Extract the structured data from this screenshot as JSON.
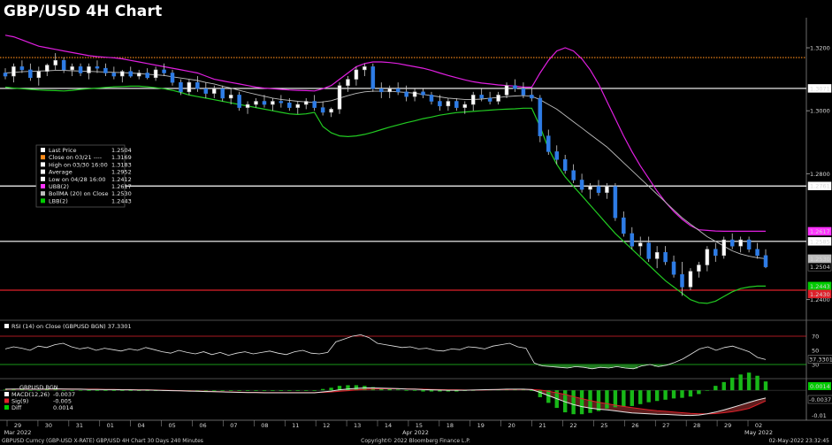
{
  "title": "GBP/USD 4H Chart",
  "chart_data": {
    "type": "candlestick",
    "price_axis": {
      "ticks": [
        "1.3200",
        "1.3000",
        "1.2800",
        "1.2400"
      ],
      "ylim": [
        1.234,
        1.329
      ]
    },
    "x_ticks": [
      "29",
      "30",
      "31",
      "01",
      "04",
      "05",
      "06",
      "07",
      "08",
      "11",
      "12",
      "13",
      "14",
      "15",
      "18",
      "19",
      "20",
      "21",
      "22",
      "25",
      "26",
      "27",
      "28",
      "29",
      "02"
    ],
    "month_labels": [
      "Mar 2022",
      "Apr 2022",
      "May 2022"
    ],
    "price_tags": [
      {
        "label": "1.3071",
        "value": 1.3071,
        "bg": "#ffffff",
        "fg": "#000000"
      },
      {
        "label": "1.2761",
        "value": 1.2761,
        "bg": "#ffffff",
        "fg": "#000000"
      },
      {
        "label": "1.2617",
        "value": 1.2617,
        "bg": "#ff33ff",
        "fg": "#000000"
      },
      {
        "label": "1.2585",
        "value": 1.2585,
        "bg": "#ffffff",
        "fg": "#000000"
      },
      {
        "label": "1.2530",
        "value": 1.253,
        "bg": "#bdbdbd",
        "fg": "#000000"
      },
      {
        "label": "1.2504",
        "value": 1.2504,
        "bg": "#000000",
        "fg": "#ffffff"
      },
      {
        "label": "1.2443",
        "value": 1.2443,
        "bg": "#00cc00",
        "fg": "#000000"
      },
      {
        "label": "1.2430",
        "value": 1.243,
        "bg": "#e0202a",
        "fg": "#ffffff"
      }
    ],
    "hlines": [
      {
        "value": 1.3169,
        "color": "#ff8c1a",
        "style": "dotted"
      },
      {
        "value": 1.3071,
        "color": "#ffffff",
        "style": "solid"
      },
      {
        "value": 1.2761,
        "color": "#ffffff",
        "style": "solid"
      },
      {
        "value": 1.2585,
        "color": "#ffffff",
        "style": "solid"
      },
      {
        "value": 1.243,
        "color": "#e0202a",
        "style": "solid"
      }
    ],
    "candles": [
      [
        1.312,
        1.3135,
        1.31,
        1.311
      ],
      [
        1.311,
        1.315,
        1.309,
        1.314
      ],
      [
        1.314,
        1.316,
        1.312,
        1.313
      ],
      [
        1.313,
        1.315,
        1.3095,
        1.3105
      ],
      [
        1.3105,
        1.314,
        1.308,
        1.3125
      ],
      [
        1.3125,
        1.315,
        1.311,
        1.3145
      ],
      [
        1.3145,
        1.3183,
        1.313,
        1.316
      ],
      [
        1.316,
        1.317,
        1.312,
        1.313
      ],
      [
        1.313,
        1.315,
        1.311,
        1.314
      ],
      [
        1.314,
        1.315,
        1.311,
        1.312
      ],
      [
        1.312,
        1.315,
        1.31,
        1.314
      ],
      [
        1.314,
        1.316,
        1.312,
        1.3135
      ],
      [
        1.3135,
        1.315,
        1.311,
        1.312
      ],
      [
        1.312,
        1.314,
        1.31,
        1.311
      ],
      [
        1.311,
        1.313,
        1.309,
        1.3125
      ],
      [
        1.3125,
        1.314,
        1.3105,
        1.311
      ],
      [
        1.311,
        1.313,
        1.31,
        1.312
      ],
      [
        1.312,
        1.3135,
        1.31,
        1.3105
      ],
      [
        1.3105,
        1.314,
        1.3095,
        1.313
      ],
      [
        1.313,
        1.315,
        1.311,
        1.312
      ],
      [
        1.312,
        1.313,
        1.308,
        1.309
      ],
      [
        1.309,
        1.31,
        1.305,
        1.306
      ],
      [
        1.306,
        1.31,
        1.305,
        1.309
      ],
      [
        1.309,
        1.311,
        1.306,
        1.307
      ],
      [
        1.307,
        1.309,
        1.304,
        1.3055
      ],
      [
        1.3055,
        1.308,
        1.304,
        1.307
      ],
      [
        1.307,
        1.308,
        1.303,
        1.304
      ],
      [
        1.304,
        1.307,
        1.302,
        1.305
      ],
      [
        1.305,
        1.306,
        1.3,
        1.301
      ],
      [
        1.301,
        1.303,
        1.299,
        1.302
      ],
      [
        1.302,
        1.304,
        1.301,
        1.303
      ],
      [
        1.303,
        1.305,
        1.301,
        1.302
      ],
      [
        1.302,
        1.304,
        1.3,
        1.303
      ],
      [
        1.303,
        1.305,
        1.301,
        1.3025
      ],
      [
        1.3025,
        1.304,
        1.3,
        1.301
      ],
      [
        1.301,
        1.303,
        1.299,
        1.302
      ],
      [
        1.302,
        1.304,
        1.3005,
        1.303
      ],
      [
        1.303,
        1.305,
        1.3,
        1.301
      ],
      [
        1.301,
        1.303,
        1.2985,
        1.2995
      ],
      [
        1.2995,
        1.301,
        1.298,
        1.3005
      ],
      [
        1.3005,
        1.309,
        1.299,
        1.308
      ],
      [
        1.308,
        1.311,
        1.306,
        1.31
      ],
      [
        1.31,
        1.314,
        1.308,
        1.313
      ],
      [
        1.313,
        1.315,
        1.311,
        1.314
      ],
      [
        1.314,
        1.315,
        1.306,
        1.307
      ],
      [
        1.307,
        1.309,
        1.304,
        1.306
      ],
      [
        1.306,
        1.308,
        1.304,
        1.307
      ],
      [
        1.307,
        1.309,
        1.305,
        1.306
      ],
      [
        1.306,
        1.308,
        1.303,
        1.3045
      ],
      [
        1.3045,
        1.307,
        1.303,
        1.306
      ],
      [
        1.306,
        1.307,
        1.304,
        1.305
      ],
      [
        1.305,
        1.306,
        1.302,
        1.303
      ],
      [
        1.303,
        1.305,
        1.3,
        1.3015
      ],
      [
        1.3015,
        1.304,
        1.3,
        1.303
      ],
      [
        1.303,
        1.304,
        1.3,
        1.301
      ],
      [
        1.301,
        1.303,
        1.299,
        1.302
      ],
      [
        1.302,
        1.306,
        1.3,
        1.305
      ],
      [
        1.305,
        1.307,
        1.303,
        1.304
      ],
      [
        1.304,
        1.306,
        1.302,
        1.303
      ],
      [
        1.303,
        1.306,
        1.302,
        1.305
      ],
      [
        1.305,
        1.309,
        1.304,
        1.308
      ],
      [
        1.308,
        1.31,
        1.306,
        1.307
      ],
      [
        1.307,
        1.309,
        1.304,
        1.305
      ],
      [
        1.305,
        1.307,
        1.303,
        1.304
      ],
      [
        1.304,
        1.305,
        1.29,
        1.292
      ],
      [
        1.292,
        1.294,
        1.286,
        1.287
      ],
      [
        1.287,
        1.289,
        1.283,
        1.2845
      ],
      [
        1.2845,
        1.286,
        1.28,
        1.281
      ],
      [
        1.281,
        1.283,
        1.277,
        1.278
      ],
      [
        1.278,
        1.28,
        1.274,
        1.275
      ],
      [
        1.275,
        1.277,
        1.272,
        1.276
      ],
      [
        1.276,
        1.278,
        1.273,
        1.274
      ],
      [
        1.274,
        1.277,
        1.272,
        1.276
      ],
      [
        1.276,
        1.277,
        1.265,
        1.266
      ],
      [
        1.266,
        1.268,
        1.26,
        1.261
      ],
      [
        1.261,
        1.263,
        1.256,
        1.257
      ],
      [
        1.257,
        1.26,
        1.254,
        1.258
      ],
      [
        1.258,
        1.26,
        1.252,
        1.253
      ],
      [
        1.253,
        1.257,
        1.25,
        1.255
      ],
      [
        1.255,
        1.257,
        1.251,
        1.252
      ],
      [
        1.252,
        1.254,
        1.247,
        1.248
      ],
      [
        1.248,
        1.252,
        1.2412,
        1.244
      ],
      [
        1.244,
        1.25,
        1.243,
        1.249
      ],
      [
        1.249,
        1.252,
        1.247,
        1.251
      ],
      [
        1.251,
        1.257,
        1.249,
        1.256
      ],
      [
        1.256,
        1.258,
        1.252,
        1.254
      ],
      [
        1.254,
        1.26,
        1.253,
        1.259
      ],
      [
        1.259,
        1.261,
        1.256,
        1.257
      ],
      [
        1.257,
        1.26,
        1.255,
        1.259
      ],
      [
        1.259,
        1.26,
        1.255,
        1.256
      ],
      [
        1.256,
        1.258,
        1.253,
        1.254
      ],
      [
        1.254,
        1.256,
        1.25,
        1.2504
      ]
    ],
    "upper_band": [
      1.324,
      1.3235,
      1.3225,
      1.3215,
      1.3205,
      1.32,
      1.3195,
      1.319,
      1.3185,
      1.318,
      1.3175,
      1.3172,
      1.317,
      1.3168,
      1.3165,
      1.316,
      1.3155,
      1.315,
      1.3145,
      1.314,
      1.3135,
      1.313,
      1.3125,
      1.312,
      1.311,
      1.31,
      1.3095,
      1.309,
      1.3085,
      1.308,
      1.3075,
      1.3072,
      1.307,
      1.3068,
      1.3066,
      1.3065,
      1.3064,
      1.3063,
      1.307,
      1.308,
      1.31,
      1.312,
      1.314,
      1.315,
      1.3155,
      1.3155,
      1.3153,
      1.315,
      1.3145,
      1.314,
      1.3135,
      1.3128,
      1.312,
      1.3112,
      1.3105,
      1.3098,
      1.3092,
      1.3088,
      1.3085,
      1.3082,
      1.308,
      1.3078,
      1.3075,
      1.3075,
      1.312,
      1.316,
      1.319,
      1.32,
      1.319,
      1.3165,
      1.313,
      1.3085,
      1.303,
      1.2975,
      1.292,
      1.287,
      1.2825,
      1.2785,
      1.2745,
      1.271,
      1.268,
      1.2655,
      1.2635,
      1.2622,
      1.262,
      1.2618,
      1.2617,
      1.2617,
      1.2617,
      1.2617,
      1.2617,
      1.2617
    ],
    "ma": [
      1.312,
      1.3122,
      1.3124,
      1.3125,
      1.3126,
      1.3127,
      1.3128,
      1.3128,
      1.3127,
      1.3126,
      1.3125,
      1.3124,
      1.3123,
      1.3122,
      1.3121,
      1.312,
      1.3118,
      1.3116,
      1.3114,
      1.3112,
      1.3108,
      1.3104,
      1.31,
      1.3096,
      1.309,
      1.3085,
      1.3078,
      1.3072,
      1.3065,
      1.3058,
      1.3052,
      1.3046,
      1.304,
      1.3036,
      1.3033,
      1.303,
      1.3028,
      1.3026,
      1.3028,
      1.3032,
      1.304,
      1.3048,
      1.3055,
      1.306,
      1.3062,
      1.3062,
      1.3062,
      1.306,
      1.3058,
      1.3056,
      1.3052,
      1.3048,
      1.3044,
      1.304,
      1.3038,
      1.3036,
      1.3036,
      1.3037,
      1.304,
      1.3042,
      1.3045,
      1.3047,
      1.3048,
      1.3046,
      1.3035,
      1.302,
      1.3005,
      1.2985,
      1.2965,
      1.2945,
      1.2925,
      1.2905,
      1.2885,
      1.286,
      1.2835,
      1.281,
      1.2785,
      1.276,
      1.2735,
      1.271,
      1.2685,
      1.266,
      1.264,
      1.262,
      1.26,
      1.2585,
      1.257,
      1.2555,
      1.2545,
      1.2538,
      1.2533,
      1.253
    ],
    "lower_band": [
      1.3075,
      1.3072,
      1.307,
      1.3068,
      1.3066,
      1.3065,
      1.3064,
      1.3063,
      1.3065,
      1.3068,
      1.307,
      1.3072,
      1.3074,
      1.3076,
      1.3077,
      1.3078,
      1.3078,
      1.3076,
      1.3073,
      1.307,
      1.3065,
      1.3058,
      1.305,
      1.3045,
      1.304,
      1.3035,
      1.303,
      1.3025,
      1.302,
      1.3015,
      1.301,
      1.3005,
      1.3,
      1.2995,
      1.299,
      1.2988,
      1.299,
      1.2995,
      1.295,
      1.293,
      1.292,
      1.2918,
      1.292,
      1.2925,
      1.2932,
      1.294,
      1.2948,
      1.2955,
      1.2962,
      1.2968,
      1.2975,
      1.298,
      1.2986,
      1.299,
      1.2994,
      1.2996,
      1.2998,
      1.3,
      1.3002,
      1.3004,
      1.3005,
      1.3006,
      1.3008,
      1.3008,
      1.295,
      1.288,
      1.283,
      1.279,
      1.276,
      1.273,
      1.27,
      1.267,
      1.264,
      1.261,
      1.2585,
      1.256,
      1.2535,
      1.251,
      1.2485,
      1.246,
      1.244,
      1.242,
      1.24,
      1.239,
      1.2388,
      1.2395,
      1.241,
      1.2425,
      1.2435,
      1.244,
      1.2443,
      1.2443
    ],
    "legend": [
      {
        "label": "Last Price",
        "value": "1.2504",
        "color": "#ffffff"
      },
      {
        "label": "Close on 03/21 ----",
        "value": "1.3169",
        "color": "#ff8c1a"
      },
      {
        "label": "High on 03/30 16:00",
        "value": "1.3183",
        "color": "#ffffff"
      },
      {
        "label": "Average",
        "value": "1.2952",
        "color": "#ffffff"
      },
      {
        "label": "Low on 04/28 16:00",
        "value": "1.2412",
        "color": "#ffffff"
      },
      {
        "label": "UBB(2)",
        "value": "1.2617",
        "color": "#ff33ff"
      },
      {
        "label": "BollMA (20)  on Close",
        "value": "1.2530",
        "color": "#bdbdbd"
      },
      {
        "label": "LBB(2)",
        "value": "1.2443",
        "color": "#00cc00"
      }
    ],
    "rsi": {
      "label": "RSI (14)  on Close (GBPUSD BGN)",
      "value": "37.3301",
      "ticks": [
        "70",
        "50",
        "30"
      ],
      "series": [
        52,
        55,
        53,
        50,
        56,
        54,
        58,
        60,
        55,
        52,
        54,
        50,
        53,
        51,
        49,
        52,
        50,
        54,
        51,
        48,
        46,
        50,
        47,
        45,
        48,
        44,
        47,
        43,
        46,
        48,
        45,
        47,
        49,
        46,
        44,
        48,
        50,
        46,
        45,
        47,
        62,
        66,
        70,
        72,
        68,
        60,
        58,
        56,
        54,
        55,
        52,
        53,
        50,
        49,
        52,
        51,
        55,
        54,
        52,
        56,
        58,
        60,
        55,
        53,
        32,
        28,
        27,
        26,
        25,
        27,
        26,
        24,
        26,
        25,
        27,
        25,
        24,
        28,
        30,
        27,
        29,
        33,
        38,
        45,
        52,
        55,
        50,
        54,
        56,
        52,
        48,
        40,
        37
      ]
    },
    "macd": {
      "title": "GBPUSD BGN",
      "ticks": [
        "0.0014",
        "-0.0037",
        "-0.01"
      ],
      "legend": [
        {
          "label": "MACD(12,26)",
          "value": "-0.0037",
          "color": "#ffffff"
        },
        {
          "label": "Sig(9)",
          "value": "-0.005",
          "color": "#e0202a"
        },
        {
          "label": "Diff",
          "value": "0.0014",
          "color": "#00cc00"
        }
      ],
      "macd_line": [
        0.0005,
        0.0006,
        0.0006,
        0.0005,
        0.0005,
        0.0006,
        0.0007,
        0.0006,
        0.0005,
        0.0005,
        0.0004,
        0.0004,
        0.0003,
        0.0003,
        0.0002,
        0.0002,
        0.0001,
        0.0001,
        0,
        -0.0001,
        -0.0002,
        -0.0003,
        -0.0004,
        -0.0005,
        -0.0006,
        -0.0007,
        -0.0008,
        -0.0009,
        -0.001,
        -0.0011,
        -0.0011,
        -0.0012,
        -0.0012,
        -0.0012,
        -0.0012,
        -0.0012,
        -0.0012,
        -0.0012,
        -0.0008,
        -0.0004,
        0.0002,
        0.0006,
        0.0009,
        0.0011,
        0.0011,
        0.001,
        0.0009,
        0.0008,
        0.0006,
        0.0005,
        0.0003,
        0.0002,
        0.0001,
        0,
        0,
        0,
        0.0001,
        0.0002,
        0.0003,
        0.0004,
        0.0005,
        0.0005,
        0.0005,
        0.0003,
        -0.001,
        -0.0025,
        -0.004,
        -0.0055,
        -0.0068,
        -0.0078,
        -0.0085,
        -0.009,
        -0.0093,
        -0.0098,
        -0.0103,
        -0.0108,
        -0.011,
        -0.0112,
        -0.0114,
        -0.0115,
        -0.0117,
        -0.0119,
        -0.012,
        -0.0118,
        -0.0112,
        -0.0104,
        -0.0094,
        -0.0082,
        -0.007,
        -0.0058,
        -0.0046,
        -0.0037
      ],
      "sig_line": [
        0.0004,
        0.0005,
        0.0005,
        0.0005,
        0.0005,
        0.0005,
        0.0006,
        0.0006,
        0.0006,
        0.0005,
        0.0005,
        0.0005,
        0.0004,
        0.0004,
        0.0003,
        0.0003,
        0.0002,
        0.0002,
        0.0001,
        0,
        -0.0001,
        -0.0002,
        -0.0003,
        -0.0004,
        -0.0005,
        -0.0006,
        -0.0007,
        -0.0008,
        -0.0009,
        -0.001,
        -0.001,
        -0.0011,
        -0.0011,
        -0.0011,
        -0.0011,
        -0.0011,
        -0.0011,
        -0.0011,
        -0.001,
        -0.0008,
        -0.0005,
        -0.0002,
        0.0001,
        0.0004,
        0.0006,
        0.0007,
        0.0007,
        0.0007,
        0.0007,
        0.0006,
        0.0005,
        0.0004,
        0.0003,
        0.0002,
        0.0002,
        0.0001,
        0.0001,
        0.0001,
        0.0002,
        0.0003,
        0.0003,
        0.0004,
        0.0004,
        0.0004,
        0.0001,
        -0.0005,
        -0.0012,
        -0.002,
        -0.003,
        -0.004,
        -0.0049,
        -0.0057,
        -0.0064,
        -0.0071,
        -0.0077,
        -0.0083,
        -0.0088,
        -0.0093,
        -0.0097,
        -0.01,
        -0.0104,
        -0.0107,
        -0.011,
        -0.0112,
        -0.0112,
        -0.0111,
        -0.0107,
        -0.0102,
        -0.0095,
        -0.0086,
        -0.0069,
        -0.0051
      ]
    },
    "footer_left": "GBPUSD Curncy (GBP-USD X-RATE)  GBP/USD 4H Chart 30 Days 240 Minutes",
    "footer_center": "Copyright© 2022 Bloomberg Finance L.P.",
    "footer_right": "02-May-2022 23:32:45"
  }
}
